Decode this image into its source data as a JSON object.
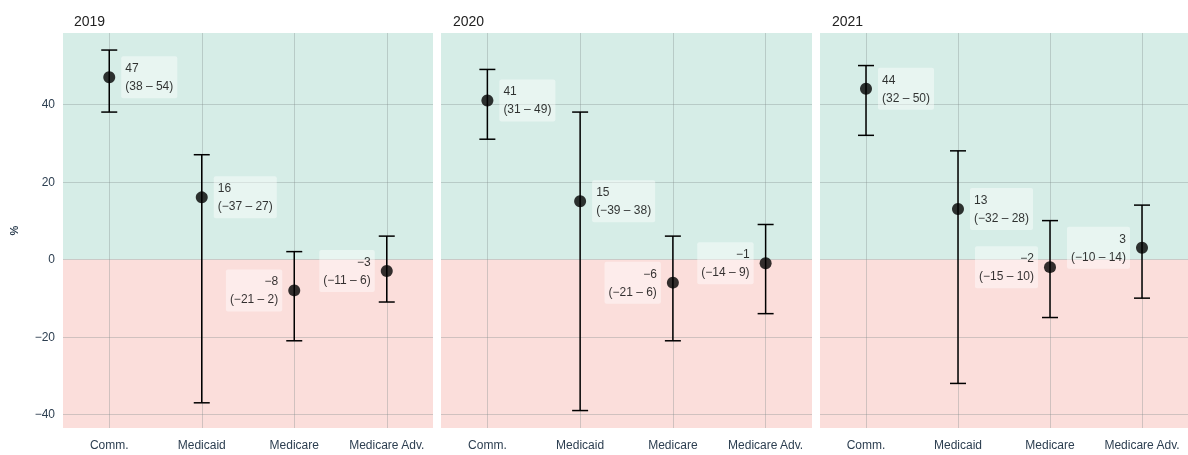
{
  "chart_data": [
    {
      "type": "scatter",
      "title": "2019",
      "ylabel": "%",
      "categories": [
        "Comm.",
        "Medicaid",
        "Medicare",
        "Medicare Adv."
      ],
      "values": [
        47,
        16,
        -8,
        -3
      ],
      "errors": [
        [
          38,
          54
        ],
        [
          -37,
          27
        ],
        [
          -21,
          2
        ],
        [
          -11,
          6
        ]
      ],
      "value_labels": [
        "47\n(38 – 54)",
        "16\n(−37 – 27)",
        "−8\n(−21 – 2)",
        "−3\n(−11 – 6)"
      ],
      "color": "#000000",
      "marker": "circle",
      "ylim": [
        -43.5,
        58.4
      ],
      "yticks": [
        {
          "value": -40,
          "label": "−40"
        },
        {
          "value": -20,
          "label": "−20"
        },
        0,
        20,
        40
      ],
      "grid": true,
      "bands": [
        {
          "axis": "y",
          "from": 0,
          "to": 58.4,
          "color": "#d6ede7"
        },
        {
          "axis": "y",
          "from": -43.5,
          "to": 0,
          "color": "#fbdedb"
        }
      ]
    },
    {
      "type": "scatter",
      "title": "2020",
      "categories": [
        "Comm.",
        "Medicaid",
        "Medicare",
        "Medicare Adv."
      ],
      "values": [
        41,
        15,
        -6,
        -1
      ],
      "errors": [
        [
          31,
          49
        ],
        [
          -39,
          38
        ],
        [
          -21,
          6
        ],
        [
          -14,
          9
        ]
      ],
      "value_labels": [
        "41\n(31 – 49)",
        "15\n(−39 – 38)",
        "−6\n(−21 – 6)",
        "−1\n(−14 – 9)"
      ],
      "color": "#000000",
      "marker": "circle",
      "ylim": [
        -43.5,
        58.4
      ],
      "yticks": [
        -40,
        -20,
        0,
        20,
        40
      ],
      "grid": true,
      "tick_labels": "x",
      "bands": [
        {
          "axis": "y",
          "from": 0,
          "to": 58.4,
          "color": "#d6ede7"
        },
        {
          "axis": "y",
          "from": -43.5,
          "to": 0,
          "color": "#fbdedb"
        }
      ]
    },
    {
      "type": "scatter",
      "title": "2021",
      "categories": [
        "Comm.",
        "Medicaid",
        "Medicare",
        "Medicare Adv."
      ],
      "values": [
        44,
        13,
        -2,
        3
      ],
      "errors": [
        [
          32,
          50
        ],
        [
          -32,
          28
        ],
        [
          -15,
          10
        ],
        [
          -10,
          14
        ]
      ],
      "value_labels": [
        "44\n(32 – 50)",
        "13\n(−32 – 28)",
        "−2\n(−15 – 10)",
        "3\n(−10 – 14)"
      ],
      "color": "#000000",
      "marker": "circle",
      "ylim": [
        -43.5,
        58.4
      ],
      "yticks": [
        -40,
        -20,
        0,
        20,
        40
      ],
      "grid": true,
      "tick_labels": "x",
      "bands": [
        {
          "axis": "y",
          "from": 0,
          "to": 58.4,
          "color": "#d6ede7"
        },
        {
          "axis": "y",
          "from": -43.5,
          "to": 0,
          "color": "#fbdedb"
        }
      ]
    }
  ]
}
